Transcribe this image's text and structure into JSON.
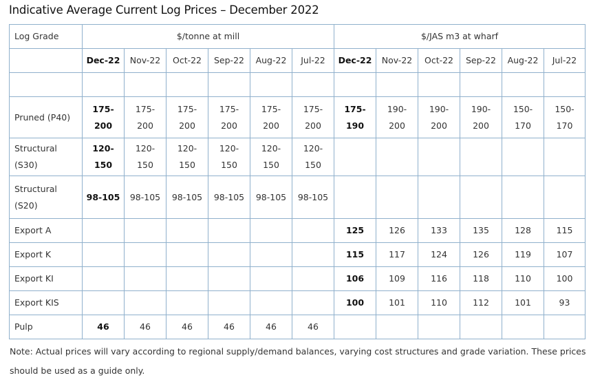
{
  "title": "Indicative Average Current Log Prices – December 2022",
  "header": {
    "log_grade": "Log Grade",
    "group_mill": "$/tonne at mill",
    "group_wharf": "$/JAS m3 at wharf",
    "months_mill": [
      "Dec-22",
      "Nov-22",
      "Oct-22",
      "Sep-22",
      "Aug-22",
      "Jul-22"
    ],
    "months_wharf": [
      "Dec-22",
      "Nov-22",
      "Oct-22",
      "Sep-22",
      "Aug-22",
      "Jul-22"
    ]
  },
  "rows": [
    {
      "grade": "Pruned (P40)",
      "mill": [
        "175-\n200",
        "175-\n200",
        "175-\n200",
        "175-\n200",
        "175-\n200",
        "175-\n200"
      ],
      "wharf": [
        "175-\n190",
        "190-\n200",
        "190-\n200",
        "190-\n200",
        "150-\n170",
        "150-\n170"
      ]
    },
    {
      "grade": "Structural\n(S30)",
      "mill": [
        "120-\n150",
        "120-\n150",
        "120-\n150",
        "120-\n150",
        "120-\n150",
        "120-\n150"
      ],
      "wharf": [
        "",
        "",
        "",
        "",
        "",
        ""
      ]
    },
    {
      "grade": "Structural\n(S20)",
      "mill": [
        "98-105",
        "98-105",
        "98-105",
        "98-105",
        "98-105",
        "98-105"
      ],
      "wharf": [
        "",
        "",
        "",
        "",
        "",
        ""
      ]
    },
    {
      "grade": "Export A",
      "mill": [
        "",
        "",
        "",
        "",
        "",
        ""
      ],
      "wharf": [
        "125",
        "126",
        "133",
        "135",
        "128",
        "115"
      ]
    },
    {
      "grade": "Export K",
      "mill": [
        "",
        "",
        "",
        "",
        "",
        ""
      ],
      "wharf": [
        "115",
        "117",
        "124",
        "126",
        "119",
        "107"
      ]
    },
    {
      "grade": "Export KI",
      "mill": [
        "",
        "",
        "",
        "",
        "",
        ""
      ],
      "wharf": [
        "106",
        "109",
        "116",
        "118",
        "110",
        "100"
      ]
    },
    {
      "grade": "Export KIS",
      "mill": [
        "",
        "",
        "",
        "",
        "",
        ""
      ],
      "wharf": [
        "100",
        "101",
        "110",
        "112",
        "101",
        "93"
      ]
    },
    {
      "grade": "Pulp",
      "mill": [
        "46",
        "46",
        "46",
        "46",
        "46",
        "46"
      ],
      "wharf": [
        "",
        "",
        "",
        "",
        "",
        ""
      ]
    }
  ],
  "note": "Note: Actual prices will vary according to regional supply/demand balances, varying cost structures and grade variation. These prices should be used as a guide only."
}
